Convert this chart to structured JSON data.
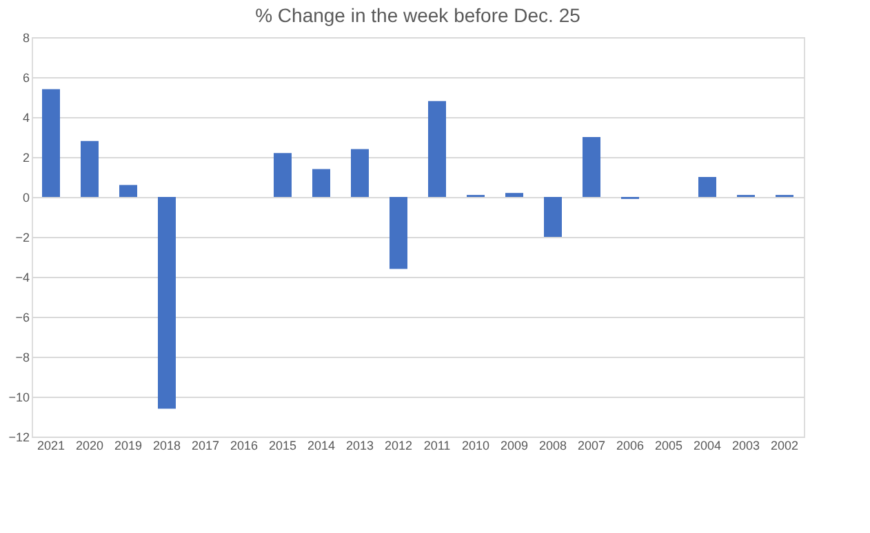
{
  "chart_data": {
    "type": "bar",
    "title": "% Change in the week before Dec. 25",
    "categories": [
      "2021",
      "2020",
      "2019",
      "2018",
      "2017",
      "2016",
      "2015",
      "2014",
      "2013",
      "2012",
      "2011",
      "2010",
      "2009",
      "2008",
      "2007",
      "2006",
      "2005",
      "2004",
      "2003",
      "2002"
    ],
    "values": [
      5.4,
      2.8,
      0.6,
      -10.6,
      0,
      0,
      2.2,
      1.4,
      2.4,
      -3.6,
      4.8,
      0.1,
      0.2,
      -2.0,
      3.0,
      -0.1,
      0,
      1.0,
      0.1,
      0.1
    ],
    "color": "#4472c4",
    "ylim": [
      -12,
      8
    ],
    "yticks": [
      -12,
      -10,
      -8,
      -6,
      -4,
      -2,
      0,
      2,
      4,
      6,
      8
    ],
    "grid": "y"
  }
}
